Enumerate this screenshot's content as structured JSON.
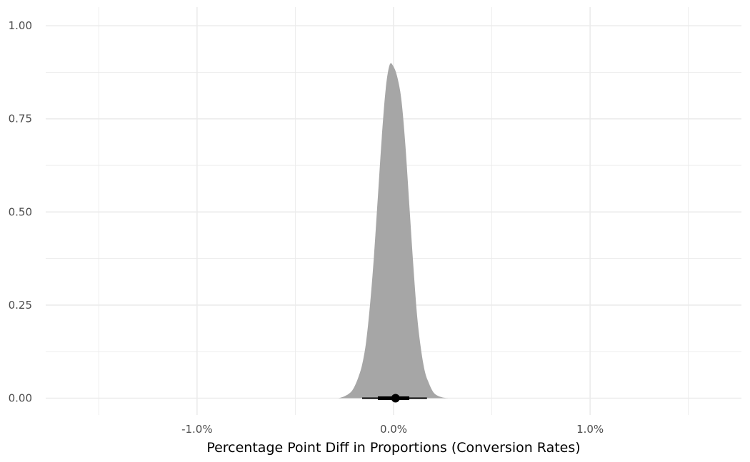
{
  "chart_data": {
    "type": "area",
    "title": "",
    "xlabel": "Percentage Point Diff in Proportions (Conversion Rates)",
    "ylabel": "",
    "xlim": [
      -0.0177,
      0.0177
    ],
    "ylim": [
      -0.045,
      1.05
    ],
    "x_ticks": [
      -0.01,
      0.0,
      0.01
    ],
    "x_tick_labels": [
      "-1.0%",
      "0.0%",
      "1.0%"
    ],
    "y_ticks": [
      0,
      0.25,
      0.5,
      0.75,
      1.0
    ],
    "y_tick_labels": [
      "0.00",
      "0.25",
      "0.50",
      "0.75",
      "1.00"
    ],
    "grid": true,
    "legend": "none",
    "series": [
      {
        "kind": "density",
        "color": "#a6a6a6",
        "x": [
          -0.0028,
          -0.0025,
          -0.0022,
          -0.002,
          -0.0018,
          -0.0016,
          -0.0014,
          -0.0012,
          -0.001,
          -0.0008,
          -0.0006,
          -0.0004,
          -0.0002,
          0.0,
          0.0002,
          0.0004,
          0.0006,
          0.0008,
          0.001,
          0.0012,
          0.0014,
          0.0016,
          0.0018,
          0.002,
          0.0022,
          0.0025,
          0.0028
        ],
        "y": [
          0.0,
          0.005,
          0.015,
          0.03,
          0.055,
          0.09,
          0.15,
          0.25,
          0.38,
          0.54,
          0.7,
          0.83,
          0.895,
          0.89,
          0.86,
          0.8,
          0.68,
          0.52,
          0.36,
          0.22,
          0.13,
          0.07,
          0.04,
          0.018,
          0.008,
          0.002,
          0.0
        ]
      }
    ],
    "interval": {
      "point": 0.0001,
      "inner": [
        -0.0008,
        0.0008
      ],
      "outer": [
        -0.0016,
        0.0017
      ],
      "color": "#000000"
    }
  }
}
